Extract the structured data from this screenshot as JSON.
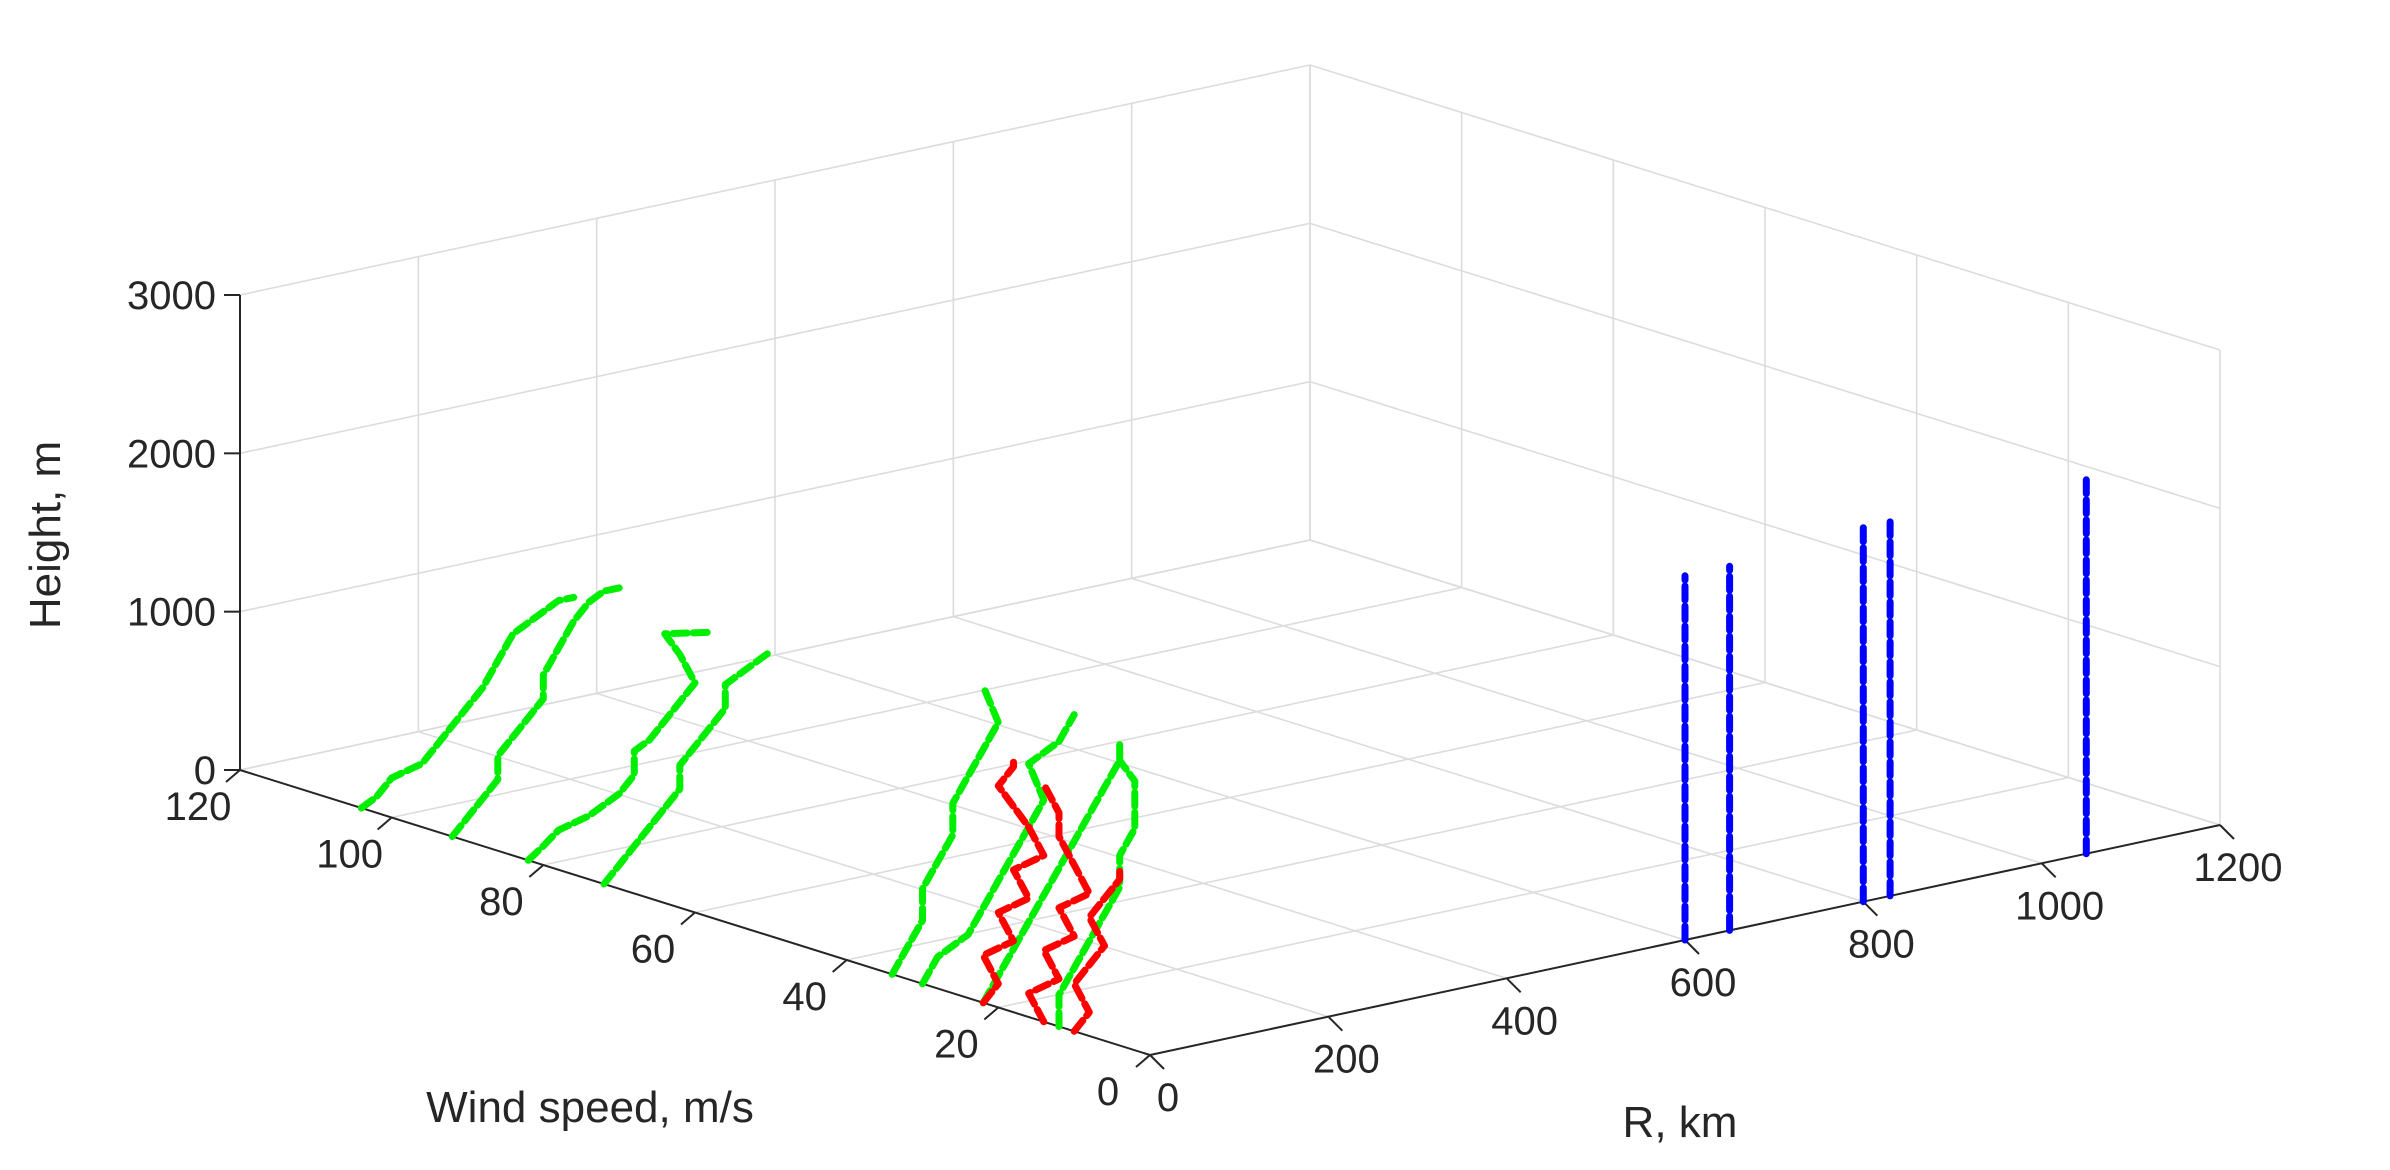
{
  "chart_data": {
    "type": "line3d",
    "title": "",
    "xlabel": "R, km",
    "ylabel": "Wind speed, m/s",
    "zlabel": "Height, m",
    "xlim": [
      0,
      1200
    ],
    "ylim": [
      0,
      120
    ],
    "zlim": [
      0,
      3000
    ],
    "xticks": [
      "0",
      "200",
      "400",
      "600",
      "800",
      "1000",
      "1200"
    ],
    "yticks": [
      "0",
      "20",
      "40",
      "60",
      "80",
      "100",
      "120"
    ],
    "zticks": [
      "0",
      "1000",
      "2000",
      "3000"
    ],
    "grid": true,
    "colors": {
      "green": "#00ee00",
      "red": "#ff0000",
      "blue": "#0000ff"
    },
    "series": [
      {
        "color": "green",
        "x": 0,
        "y": [
          104,
          102,
          100,
          96,
          94,
          92,
          90,
          88,
          86,
          84,
          80,
          78,
          76
        ],
        "z": [
          0,
          100,
          250,
          400,
          550,
          700,
          850,
          1000,
          1200,
          1400,
          1600,
          1700,
          1750
        ]
      },
      {
        "color": "green",
        "x": 0,
        "y": [
          92,
          90,
          88,
          86,
          86,
          84,
          82,
          80,
          80,
          78,
          76,
          74,
          72,
          70
        ],
        "z": [
          0,
          150,
          300,
          450,
          600,
          750,
          900,
          1050,
          1200,
          1400,
          1600,
          1750,
          1850,
          1900
        ]
      },
      {
        "color": "green",
        "x": 0,
        "y": [
          82,
          80,
          78,
          74,
          72,
          70,
          68,
          68,
          66,
          64,
          62,
          60,
          62,
          64,
          58
        ],
        "z": [
          0,
          120,
          250,
          400,
          500,
          600,
          750,
          900,
          1000,
          1150,
          1300,
          1450,
          1600,
          1700,
          1800
        ]
      },
      {
        "color": "green",
        "x": 0,
        "y": [
          72,
          70,
          68,
          66,
          64,
          62,
          62,
          60,
          58,
          56,
          56,
          54,
          52,
          50
        ],
        "z": [
          0,
          150,
          300,
          450,
          600,
          750,
          900,
          1050,
          1200,
          1350,
          1500,
          1600,
          1700,
          1800
        ]
      },
      {
        "color": "green",
        "x": 0,
        "y": [
          34,
          32,
          30,
          30,
          28,
          26,
          26,
          24,
          22,
          20,
          22
        ],
        "z": [
          0,
          200,
          400,
          600,
          800,
          1000,
          1200,
          1400,
          1600,
          1800,
          2000
        ]
      },
      {
        "color": "green",
        "x": 0,
        "y": [
          30,
          28,
          24,
          22,
          20,
          18,
          16,
          14,
          16,
          12,
          10
        ],
        "z": [
          0,
          200,
          400,
          600,
          800,
          1000,
          1200,
          1400,
          1600,
          1800,
          2000
        ]
      },
      {
        "color": "green",
        "x": 0,
        "y": [
          22,
          20,
          18,
          16,
          14,
          12,
          10,
          8,
          6,
          4,
          4
        ],
        "z": [
          0,
          200,
          400,
          600,
          800,
          1000,
          1200,
          1400,
          1600,
          1800,
          1900
        ]
      },
      {
        "color": "green",
        "x": 0,
        "y": [
          12,
          12,
          10,
          8,
          6,
          4,
          4,
          2,
          2,
          2,
          4
        ],
        "z": [
          0,
          200,
          400,
          600,
          800,
          1000,
          1200,
          1400,
          1600,
          1700,
          1800
        ]
      },
      {
        "color": "red",
        "x": 0,
        "y": [
          22,
          20,
          22,
          18,
          20,
          16,
          18,
          14,
          16,
          20,
          18,
          18
        ],
        "z": [
          0,
          150,
          300,
          450,
          600,
          750,
          900,
          1050,
          1200,
          1400,
          1550,
          1600
        ]
      },
      {
        "color": "red",
        "x": 0,
        "y": [
          14,
          16,
          12,
          14,
          10,
          12,
          8,
          10,
          12,
          12,
          14
        ],
        "z": [
          0,
          150,
          300,
          450,
          600,
          750,
          900,
          1050,
          1200,
          1350,
          1500
        ]
      },
      {
        "color": "red",
        "x": 0,
        "y": [
          10,
          8,
          10,
          8,
          6,
          8,
          6,
          4,
          4
        ],
        "z": [
          0,
          150,
          300,
          450,
          600,
          750,
          900,
          1050,
          1100
        ]
      },
      {
        "color": "blue",
        "x": 600,
        "y": 0,
        "z": [
          0,
          200,
          400,
          600,
          800,
          1000,
          1200,
          1400,
          1600,
          1800,
          2000,
          2200,
          2300
        ]
      },
      {
        "color": "blue",
        "x": 650,
        "y": 0,
        "z": [
          0,
          200,
          400,
          600,
          800,
          1000,
          1200,
          1400,
          1600,
          1800,
          2000,
          2200,
          2300
        ]
      },
      {
        "color": "blue",
        "x": 800,
        "y": 0,
        "z": [
          0,
          200,
          400,
          600,
          800,
          1000,
          1200,
          1400,
          1600,
          1800,
          2000,
          2200,
          2400
        ]
      },
      {
        "color": "blue",
        "x": 830,
        "y": 0,
        "z": [
          0,
          200,
          400,
          600,
          800,
          1000,
          1200,
          1400,
          1600,
          1800,
          2000,
          2200,
          2400
        ]
      },
      {
        "color": "blue",
        "x": 1050,
        "y": 0,
        "z": [
          0,
          200,
          400,
          600,
          800,
          1000,
          1200,
          1400,
          1600,
          1800,
          2000,
          2200,
          2400
        ]
      }
    ]
  }
}
